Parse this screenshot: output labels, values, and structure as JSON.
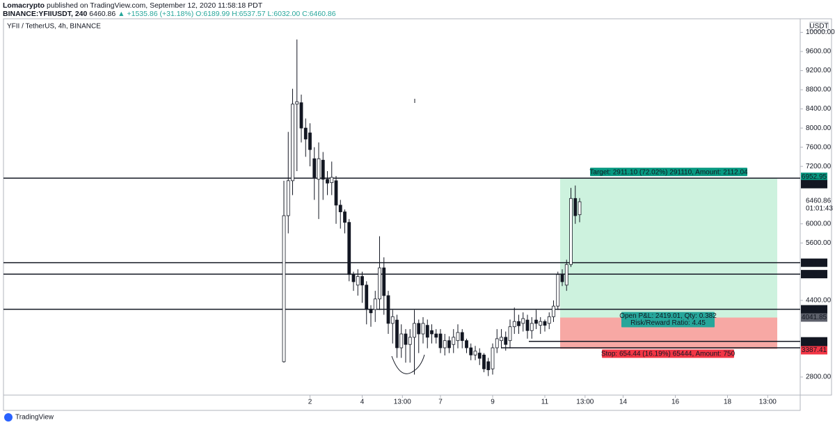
{
  "header": {
    "author": "Lomacrypto",
    "published": "published on TradingView.com, September 12, 2020 11:58:18 PDT",
    "symbol": "BINANCE:YFIIUSDT, 240",
    "last": "6460.86",
    "change": "▲ +1535.86 (+31.18%)",
    "ohlc": [
      "O:6189.99",
      "H:6537.57",
      "L:6032.00",
      "C:6460.86"
    ]
  },
  "chart_data": {
    "type": "candlestick",
    "title": "YFII / TetherUS, 4h, BINANCE",
    "currency": "USDT",
    "series": [
      {
        "name": "YFIIUSDT",
        "open": [
          3120,
          6170,
          6900,
          8500,
          8530,
          8000,
          7900,
          7360,
          6930,
          7330,
          6930,
          6860,
          6900,
          6390,
          6250,
          6030,
          4940,
          4720,
          4900,
          4720,
          4210,
          4210,
          4430,
          5080,
          4500,
          3920,
          3990,
          3410,
          3700,
          3480,
          3630,
          3920,
          3700,
          3880,
          3770,
          3700,
          3700,
          3410,
          3560,
          3480,
          3560,
          3730,
          3560,
          3410,
          3260,
          3300,
          3260,
          3120,
          2970,
          3410,
          3560,
          3630,
          3560,
          3850,
          3960,
          3920,
          3990,
          3770,
          3990,
          3880,
          3960,
          3920,
          4060,
          4280,
          4940,
          4720,
          5150,
          6530,
          6189.99
        ],
        "high": [
          6900,
          7920,
          8820,
          9850,
          8700,
          8200,
          8100,
          7600,
          7700,
          7500,
          7100,
          7300,
          7000,
          6500,
          6300,
          6100,
          5000,
          5050,
          5000,
          4800,
          4300,
          4600,
          5740,
          5300,
          4600,
          4200,
          4100,
          3900,
          3800,
          3800,
          4200,
          4000,
          4050,
          4000,
          3900,
          3800,
          3800,
          3700,
          3650,
          3800,
          3900,
          3800,
          3600,
          3500,
          3450,
          3400,
          3300,
          3200,
          3500,
          3800,
          3800,
          3750,
          4000,
          4250,
          4100,
          4150,
          4100,
          4050,
          4200,
          4050,
          4000,
          4150,
          4400,
          5000,
          5050,
          5250,
          6750,
          6800,
          6537.57
        ],
        "low": [
          3100,
          5800,
          6600,
          7100,
          7700,
          7400,
          7200,
          6500,
          6100,
          6500,
          6600,
          6600,
          6000,
          5900,
          5800,
          4800,
          4600,
          4500,
          4350,
          3900,
          3850,
          3950,
          4200,
          4100,
          3700,
          3500,
          3200,
          3200,
          3100,
          3100,
          2850,
          3300,
          3500,
          3400,
          3500,
          3500,
          3300,
          3250,
          3300,
          3300,
          3400,
          3400,
          3300,
          3150,
          3150,
          3050,
          2900,
          2820,
          2850,
          3300,
          3400,
          3350,
          3400,
          3700,
          3700,
          3750,
          3600,
          3600,
          3800,
          3700,
          3750,
          3800,
          3950,
          4200,
          4700,
          4600,
          5100,
          6000,
          6032.0
        ],
        "close": [
          6170,
          6900,
          8500,
          8550,
          8000,
          7770,
          7550,
          6970,
          7360,
          6930,
          6850,
          6970,
          6390,
          6250,
          6030,
          4940,
          4790,
          4900,
          4720,
          4210,
          4140,
          4430,
          5080,
          4500,
          3920,
          4060,
          3410,
          3700,
          3480,
          3630,
          3920,
          3700,
          3920,
          3630,
          3700,
          3630,
          3410,
          3560,
          3410,
          3630,
          3730,
          3560,
          3410,
          3260,
          3340,
          3190,
          2970,
          2950,
          3410,
          3600,
          3630,
          3480,
          3850,
          3960,
          3870,
          4020,
          3770,
          3920,
          3920,
          3960,
          3880,
          4060,
          4280,
          4940,
          4790,
          5150,
          6530,
          6170,
          6460.86
        ]
      }
    ],
    "ylim": [
      2422,
      10283
    ],
    "yticks": [
      {
        "value": 2800,
        "label": "2800.00"
      },
      {
        "value": 4400,
        "label": "4400.00"
      },
      {
        "value": 5600,
        "label": "5600.00"
      },
      {
        "value": 6000,
        "label": "6000.00"
      },
      {
        "value": 7200,
        "label": "7200.00"
      },
      {
        "value": 7600,
        "label": "7600.00"
      },
      {
        "value": 8000,
        "label": "8000.00"
      },
      {
        "value": 8400,
        "label": "8400.00"
      },
      {
        "value": 8800,
        "label": "8800.00"
      },
      {
        "value": 9200,
        "label": "9200.00"
      },
      {
        "value": 9600,
        "label": "9600.00"
      },
      {
        "value": 10000,
        "label": "10000.00"
      }
    ],
    "xticks": [
      {
        "value": 6,
        "label": "2"
      },
      {
        "value": 18,
        "label": "4"
      },
      {
        "value": 27.25,
        "label": "13:00"
      },
      {
        "value": 36,
        "label": "7"
      },
      {
        "value": 48,
        "label": "9"
      },
      {
        "value": 60,
        "label": "11"
      },
      {
        "value": 69.25,
        "label": "13:00"
      },
      {
        "value": 78,
        "label": "14"
      },
      {
        "value": 90,
        "label": "16"
      },
      {
        "value": 102,
        "label": "18"
      },
      {
        "value": 111.25,
        "label": "13:00"
      }
    ],
    "levels": [
      6952.95,
      5187.48,
      4948.79,
      4214.68,
      3545.38,
      3409.98
    ],
    "extra_price_labels": [
      6915.65
    ],
    "countdown": "01:01:43",
    "position": {
      "entry": 4041.85,
      "target": 6952.95,
      "stop": 3387.41,
      "target_label": "Target: 2911.10 (72.02%) 291110, Amount: 2112.04",
      "pnl_label": "Open P&L: 2419.01, Qty: 0.382",
      "rr_label": "Risk/Reward Ratio: 4.45",
      "stop_label": "Stop: 654.44 (16.19%) 65444, Amount: 750"
    },
    "grid": false
  },
  "footer": {
    "brand": "TradingView"
  }
}
